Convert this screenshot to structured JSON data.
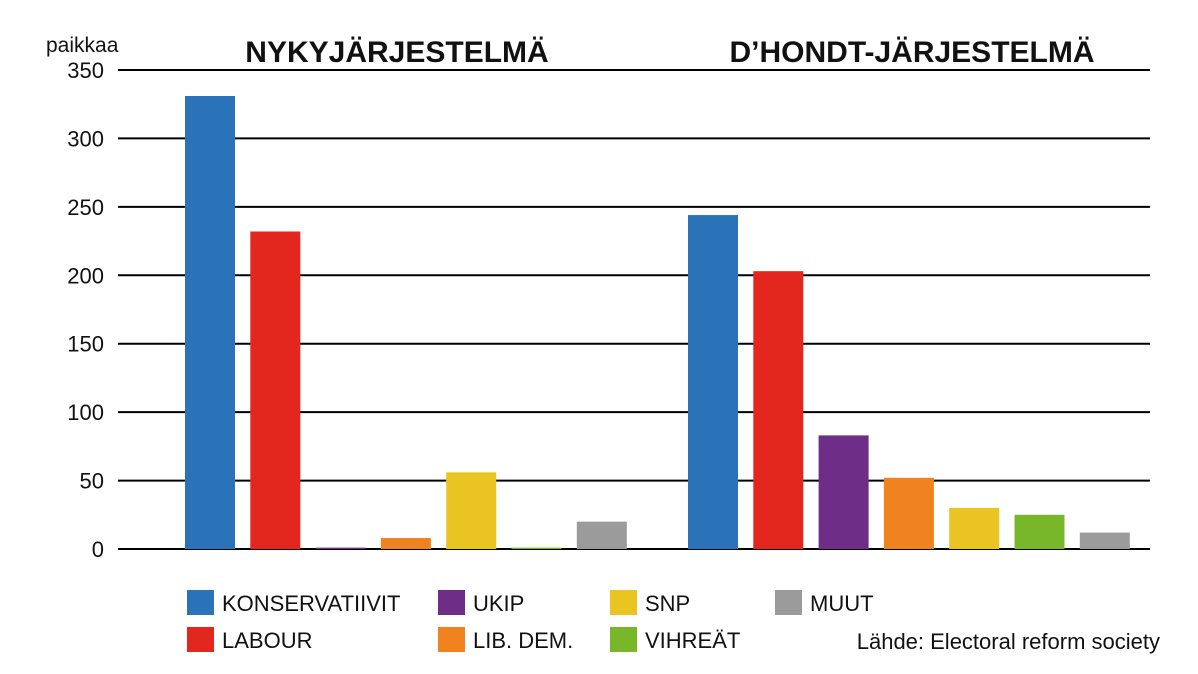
{
  "chart_data": {
    "type": "bar",
    "ylabel": "paikkaa",
    "ylim": [
      0,
      350
    ],
    "yticks": [
      0,
      50,
      100,
      150,
      200,
      250,
      300,
      350
    ],
    "grid": true,
    "panels": [
      {
        "title": "NYKYJÄRJESTELMÄ",
        "bars": [
          {
            "party": "KONSERVATIIVIT",
            "value": 331
          },
          {
            "party": "LABOUR",
            "value": 232
          },
          {
            "party": "UKIP",
            "value": 1
          },
          {
            "party": "LIB. DEM.",
            "value": 8
          },
          {
            "party": "SNP",
            "value": 56
          },
          {
            "party": "VIHREÄT",
            "value": 1
          },
          {
            "party": "MUUT",
            "value": 20
          }
        ]
      },
      {
        "title": "D’HONDT-JÄRJESTELMÄ",
        "bars": [
          {
            "party": "KONSERVATIIVIT",
            "value": 244
          },
          {
            "party": "LABOUR",
            "value": 203
          },
          {
            "party": "UKIP",
            "value": 83
          },
          {
            "party": "LIB. DEM.",
            "value": 52
          },
          {
            "party": "SNP",
            "value": 30
          },
          {
            "party": "VIHREÄT",
            "value": 25
          },
          {
            "party": "MUUT",
            "value": 12
          }
        ]
      }
    ],
    "legend": [
      {
        "label": "KONSERVATIIVIT",
        "color": "#2a73b9"
      },
      {
        "label": "UKIP",
        "color": "#6e2d86"
      },
      {
        "label": "SNP",
        "color": "#e9c423"
      },
      {
        "label": "MUUT",
        "color": "#9b9b9b"
      },
      {
        "label": "LABOUR",
        "color": "#e3271f"
      },
      {
        "label": "LIB. DEM.",
        "color": "#f08220"
      },
      {
        "label": "VIHREÄT",
        "color": "#78b72a"
      }
    ],
    "legend_position": "bottom",
    "source": "Lähde: Electoral reform society"
  }
}
